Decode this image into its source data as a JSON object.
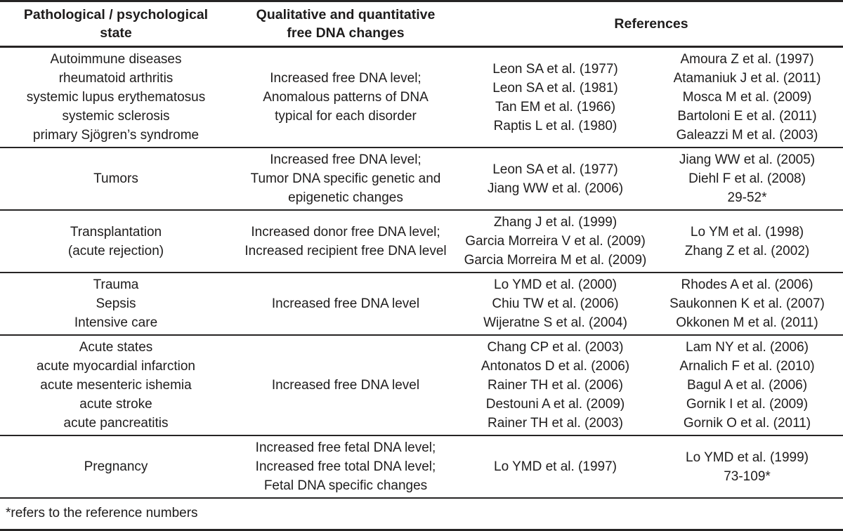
{
  "page": {
    "background_color": "#ffffff",
    "text_color": "#1e1c1c",
    "rule_color": "#262424"
  },
  "table": {
    "headers": {
      "state": [
        "Pathological / psychological",
        "state"
      ],
      "changes": [
        "Qualitative and quantitative",
        "free DNA changes"
      ],
      "references": "References"
    },
    "rows": [
      {
        "state": [
          "Autoimmune diseases",
          "rheumatoid arthritis",
          "systemic lupus erythematosus",
          "systemic sclerosis",
          "primary Sjögren’s syndrome"
        ],
        "changes": [
          "Increased free DNA level;",
          "Anomalous patterns of DNA",
          "typical for each disorder"
        ],
        "refs_primary": [
          "Leon SA et al. (1977)",
          "Leon SA et al. (1981)",
          "Tan EM et al. (1966)",
          "Raptis L et al. (1980)"
        ],
        "refs_secondary": [
          "Amoura Z et al. (1997)",
          "Atamaniuk J et al. (2011)",
          "Mosca M et al. (2009)",
          "Bartoloni E et al. (2011)",
          "Galeazzi M et al. (2003)"
        ]
      },
      {
        "state": [
          "Tumors"
        ],
        "changes": [
          "Increased free DNA level;",
          "Tumor DNA specific genetic and",
          "epigenetic changes"
        ],
        "refs_primary": [
          "Leon SA et al. (1977)",
          "Jiang WW et al. (2006)"
        ],
        "refs_secondary": [
          "Jiang WW et al. (2005)",
          "Diehl F et al. (2008)",
          "29-52*"
        ]
      },
      {
        "state": [
          "Transplantation",
          "(acute rejection)"
        ],
        "changes": [
          "Increased donor free DNA level;",
          "Increased recipient free DNA level"
        ],
        "refs_primary": [
          "Zhang J et al. (1999)",
          "Garcia Morreira V et al. (2009)",
          "Garcia Morreira M et al. (2009)"
        ],
        "refs_secondary": [
          "Lo YM et al. (1998)",
          "Zhang Z et al. (2002)"
        ]
      },
      {
        "state": [
          "Trauma",
          "Sepsis",
          "Intensive care"
        ],
        "changes": [
          "Increased free DNA level"
        ],
        "refs_primary": [
          "Lo YMD et al. (2000)",
          "Chiu TW et al. (2006)",
          "Wijeratne S et al. (2004)"
        ],
        "refs_secondary": [
          "Rhodes A et al. (2006)",
          "Saukonnen K et al. (2007)",
          "Okkonen M et al. (2011)"
        ]
      },
      {
        "state": [
          "Acute states",
          "acute myocardial infarction",
          "acute mesenteric ishemia",
          "acute stroke",
          "acute pancreatitis"
        ],
        "changes": [
          "Increased free DNA level"
        ],
        "refs_primary": [
          "Chang CP et al. (2003)",
          "Antonatos D et al. (2006)",
          "Rainer TH et al. (2006)",
          "Destouni A et al. (2009)",
          "Rainer TH et al. (2003)"
        ],
        "refs_secondary": [
          "Lam NY et al. (2006)",
          "Arnalich F et al. (2010)",
          "Bagul A et al. (2006)",
          "Gornik I et al. (2009)",
          "Gornik O et al. (2011)"
        ]
      },
      {
        "state": [
          "Pregnancy"
        ],
        "changes": [
          "Increased free fetal DNA level;",
          "Increased free total DNA level;",
          "Fetal DNA specific changes"
        ],
        "refs_primary": [
          "Lo YMD et al. (1997)"
        ],
        "refs_secondary": [
          "Lo YMD et al. (1999)",
          "73-109*"
        ]
      }
    ],
    "footnote": "*refers to the reference numbers"
  }
}
